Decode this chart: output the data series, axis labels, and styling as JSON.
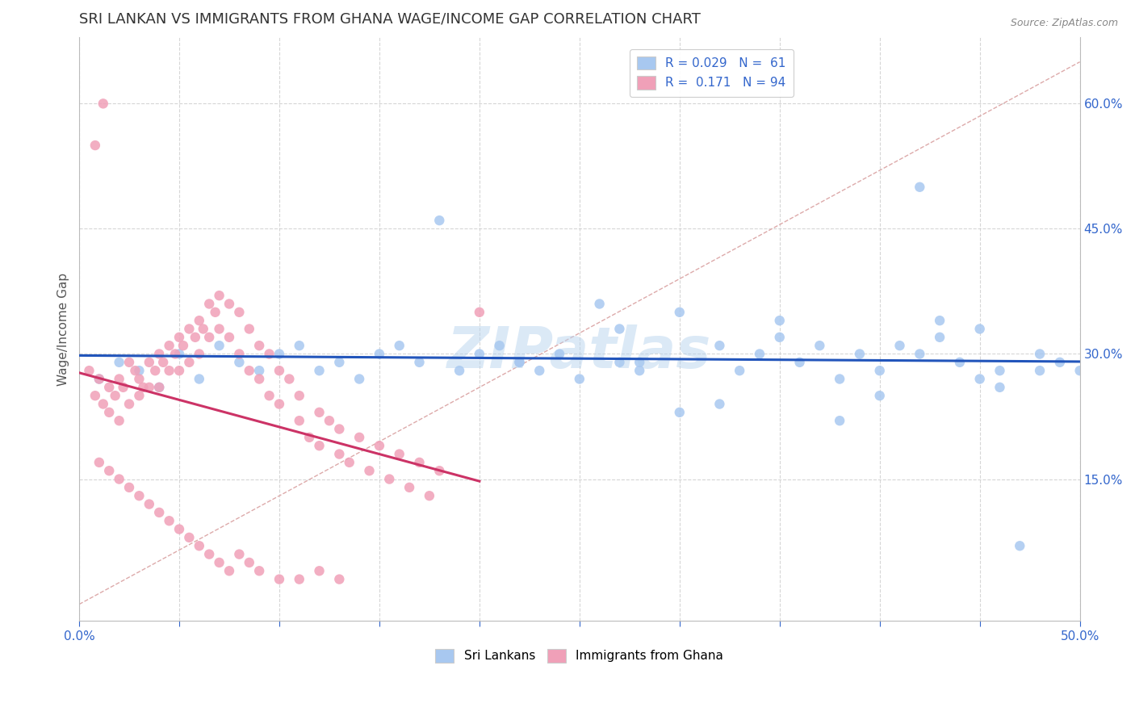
{
  "title": "SRI LANKAN VS IMMIGRANTS FROM GHANA WAGE/INCOME GAP CORRELATION CHART",
  "source": "Source: ZipAtlas.com",
  "ylabel": "Wage/Income Gap",
  "xlim": [
    0.0,
    0.5
  ],
  "ylim": [
    -0.02,
    0.68
  ],
  "xticks": [
    0.0,
    0.05,
    0.1,
    0.15,
    0.2,
    0.25,
    0.3,
    0.35,
    0.4,
    0.45,
    0.5
  ],
  "xtick_labels": [
    "0.0%",
    "",
    "",
    "",
    "",
    "",
    "",
    "",
    "",
    "",
    "50.0%"
  ],
  "yticks": [
    0.15,
    0.3,
    0.45,
    0.6
  ],
  "ytick_labels": [
    "15.0%",
    "30.0%",
    "45.0%",
    "60.0%"
  ],
  "blue_color": "#a8c8f0",
  "pink_color": "#f0a0b8",
  "blue_line_color": "#2255bb",
  "pink_line_color": "#cc3366",
  "diag_line_color": "#ddaaaa",
  "R_blue": 0.029,
  "N_blue": 61,
  "R_pink": 0.171,
  "N_pink": 94,
  "watermark": "ZIPatlas",
  "watermark_color": "#b8d4ee",
  "background_color": "#ffffff",
  "grid_color": "#cccccc",
  "title_color": "#333333",
  "tick_color": "#3366cc",
  "label_color": "#555555",
  "blue_scatter_x": [
    0.01,
    0.02,
    0.03,
    0.04,
    0.05,
    0.06,
    0.07,
    0.08,
    0.09,
    0.1,
    0.11,
    0.12,
    0.13,
    0.14,
    0.15,
    0.16,
    0.17,
    0.18,
    0.19,
    0.2,
    0.21,
    0.22,
    0.23,
    0.24,
    0.25,
    0.26,
    0.27,
    0.28,
    0.3,
    0.32,
    0.33,
    0.34,
    0.35,
    0.36,
    0.37,
    0.38,
    0.39,
    0.4,
    0.41,
    0.42,
    0.43,
    0.44,
    0.45,
    0.46,
    0.47,
    0.48,
    0.49,
    0.27,
    0.3,
    0.35,
    0.4,
    0.43,
    0.46,
    0.22,
    0.28,
    0.32,
    0.38,
    0.42,
    0.45,
    0.48,
    0.5
  ],
  "blue_scatter_y": [
    0.27,
    0.29,
    0.28,
    0.26,
    0.3,
    0.27,
    0.31,
    0.29,
    0.28,
    0.3,
    0.31,
    0.28,
    0.29,
    0.27,
    0.3,
    0.31,
    0.29,
    0.46,
    0.28,
    0.3,
    0.31,
    0.29,
    0.28,
    0.3,
    0.27,
    0.36,
    0.29,
    0.28,
    0.35,
    0.31,
    0.28,
    0.3,
    0.34,
    0.29,
    0.31,
    0.27,
    0.3,
    0.28,
    0.31,
    0.3,
    0.32,
    0.29,
    0.27,
    0.28,
    0.07,
    0.3,
    0.29,
    0.33,
    0.23,
    0.32,
    0.25,
    0.34,
    0.26,
    0.29,
    0.29,
    0.24,
    0.22,
    0.5,
    0.33,
    0.28,
    0.28
  ],
  "pink_scatter_x": [
    0.005,
    0.008,
    0.01,
    0.012,
    0.015,
    0.015,
    0.018,
    0.02,
    0.02,
    0.022,
    0.025,
    0.025,
    0.028,
    0.03,
    0.03,
    0.032,
    0.035,
    0.035,
    0.038,
    0.04,
    0.04,
    0.042,
    0.045,
    0.045,
    0.048,
    0.05,
    0.05,
    0.052,
    0.055,
    0.055,
    0.058,
    0.06,
    0.06,
    0.062,
    0.065,
    0.065,
    0.068,
    0.07,
    0.07,
    0.075,
    0.075,
    0.08,
    0.08,
    0.085,
    0.085,
    0.09,
    0.09,
    0.095,
    0.095,
    0.1,
    0.1,
    0.105,
    0.11,
    0.11,
    0.115,
    0.12,
    0.12,
    0.125,
    0.13,
    0.13,
    0.135,
    0.14,
    0.145,
    0.15,
    0.155,
    0.16,
    0.165,
    0.17,
    0.175,
    0.18,
    0.01,
    0.015,
    0.02,
    0.025,
    0.03,
    0.035,
    0.04,
    0.045,
    0.05,
    0.055,
    0.06,
    0.065,
    0.07,
    0.075,
    0.08,
    0.085,
    0.09,
    0.1,
    0.11,
    0.12,
    0.13,
    0.008,
    0.012,
    0.2
  ],
  "pink_scatter_y": [
    0.28,
    0.25,
    0.27,
    0.24,
    0.26,
    0.23,
    0.25,
    0.27,
    0.22,
    0.26,
    0.29,
    0.24,
    0.28,
    0.27,
    0.25,
    0.26,
    0.29,
    0.26,
    0.28,
    0.3,
    0.26,
    0.29,
    0.31,
    0.28,
    0.3,
    0.32,
    0.28,
    0.31,
    0.33,
    0.29,
    0.32,
    0.34,
    0.3,
    0.33,
    0.36,
    0.32,
    0.35,
    0.37,
    0.33,
    0.36,
    0.32,
    0.35,
    0.3,
    0.33,
    0.28,
    0.31,
    0.27,
    0.3,
    0.25,
    0.28,
    0.24,
    0.27,
    0.22,
    0.25,
    0.2,
    0.23,
    0.19,
    0.22,
    0.18,
    0.21,
    0.17,
    0.2,
    0.16,
    0.19,
    0.15,
    0.18,
    0.14,
    0.17,
    0.13,
    0.16,
    0.17,
    0.16,
    0.15,
    0.14,
    0.13,
    0.12,
    0.11,
    0.1,
    0.09,
    0.08,
    0.07,
    0.06,
    0.05,
    0.04,
    0.06,
    0.05,
    0.04,
    0.03,
    0.03,
    0.04,
    0.03,
    0.55,
    0.6,
    0.35
  ]
}
